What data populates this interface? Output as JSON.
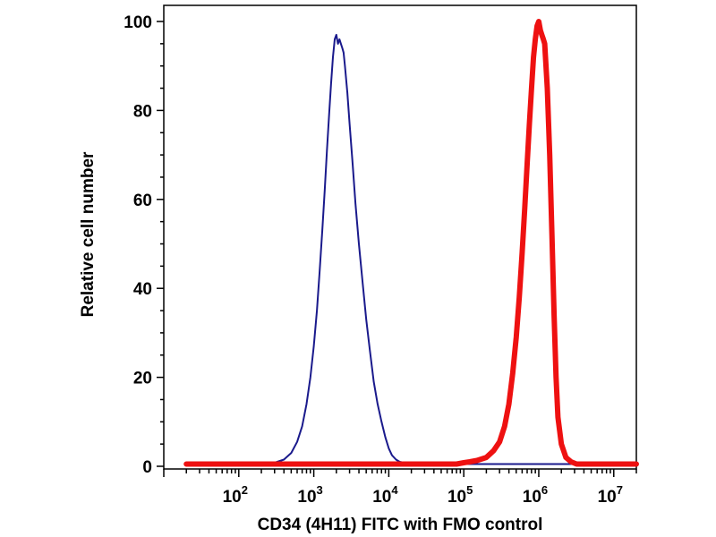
{
  "chart_data": {
    "type": "line",
    "title": "",
    "xlabel": "CD34 (4H11) FITC with FMO control",
    "ylabel": "Relative cell number",
    "x_scale": "log",
    "xlim": [
      10,
      20000000
    ],
    "ylim": [
      0,
      105
    ],
    "x_ticks": [
      {
        "value": 100,
        "base": "10",
        "exp": "2"
      },
      {
        "value": 1000,
        "base": "10",
        "exp": "3"
      },
      {
        "value": 10000,
        "base": "10",
        "exp": "4"
      },
      {
        "value": 100000,
        "base": "10",
        "exp": "5"
      },
      {
        "value": 1000000,
        "base": "10",
        "exp": "6"
      },
      {
        "value": 10000000,
        "base": "10",
        "exp": "7"
      }
    ],
    "y_ticks": [
      "0",
      "20",
      "40",
      "60",
      "80",
      "100"
    ],
    "grid": false,
    "series": [
      {
        "color": "#1a1a8c",
        "stroke": "thin",
        "x": [
          20,
          200,
          300,
          400,
          500,
          600,
          700,
          800,
          900,
          1000,
          1100,
          1200,
          1300,
          1400,
          1500,
          1600,
          1700,
          1800,
          1900,
          2000,
          2100,
          2200,
          2300,
          2400,
          2500,
          2600,
          2800,
          3000,
          3300,
          3600,
          4000,
          4500,
          5000,
          5600,
          6300,
          7100,
          8000,
          9000,
          10000,
          11000,
          12500,
          14000,
          16000,
          20000,
          20000000
        ],
        "y": [
          0.5,
          0.5,
          0.8,
          1.5,
          3,
          5.5,
          9,
          14,
          20,
          27,
          35,
          44,
          53,
          62,
          71,
          79,
          86,
          92,
          96,
          97,
          95,
          96,
          95,
          94,
          93,
          90,
          84,
          77,
          68,
          59,
          50,
          41,
          33,
          26,
          19,
          14,
          10,
          6.5,
          4,
          2.5,
          1.5,
          1,
          0.8,
          0.5,
          0.5
        ]
      },
      {
        "color": "#ee1111",
        "stroke": "thick",
        "x": [
          20,
          80000,
          100000,
          120000,
          150000,
          200000,
          250000,
          300000,
          350000,
          400000,
          450000,
          500000,
          550000,
          600000,
          650000,
          700000,
          750000,
          800000,
          850000,
          900000,
          950000,
          1000000,
          1050000,
          1100000,
          1150000,
          1200000,
          1300000,
          1400000,
          1500000,
          1600000,
          1700000,
          1800000,
          2000000,
          2300000,
          2700000,
          3200000,
          20000000
        ],
        "y": [
          0.5,
          0.5,
          0.8,
          1,
          1.3,
          2,
          3.5,
          5.5,
          9,
          14,
          21,
          29,
          38,
          48,
          58,
          68,
          77,
          85,
          92,
          96,
          99,
          100,
          98,
          97,
          96,
          95,
          85,
          70,
          52,
          34,
          20,
          11,
          5,
          2,
          1,
          0.5,
          0.5
        ]
      }
    ]
  }
}
